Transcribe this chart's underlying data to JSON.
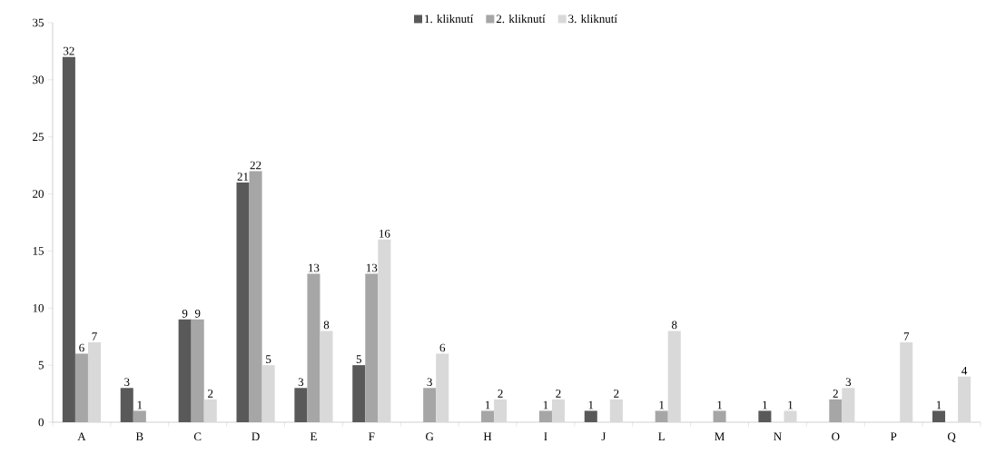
{
  "chart_data": {
    "type": "bar",
    "categories": [
      "A",
      "B",
      "C",
      "D",
      "E",
      "F",
      "G",
      "H",
      "I",
      "J",
      "L",
      "M",
      "N",
      "O",
      "P",
      "Q"
    ],
    "series": [
      {
        "name": "1. kliknutí",
        "color": "#595959",
        "values": [
          32,
          3,
          9,
          21,
          3,
          5,
          null,
          null,
          null,
          1,
          null,
          null,
          1,
          null,
          null,
          1
        ]
      },
      {
        "name": "2. kliknutí",
        "color": "#a6a6a6",
        "values": [
          6,
          1,
          9,
          22,
          13,
          13,
          3,
          1,
          1,
          null,
          1,
          1,
          null,
          2,
          null,
          null
        ]
      },
      {
        "name": "3. kliknutí",
        "color": "#d9d9d9",
        "values": [
          7,
          null,
          2,
          5,
          8,
          16,
          6,
          2,
          2,
          2,
          8,
          null,
          1,
          3,
          7,
          4
        ]
      }
    ],
    "ylim": [
      0,
      35
    ],
    "yticks": [
      0,
      5,
      10,
      15,
      20,
      25,
      30,
      35
    ],
    "data_labels": true,
    "legend": "top",
    "grid": false
  }
}
